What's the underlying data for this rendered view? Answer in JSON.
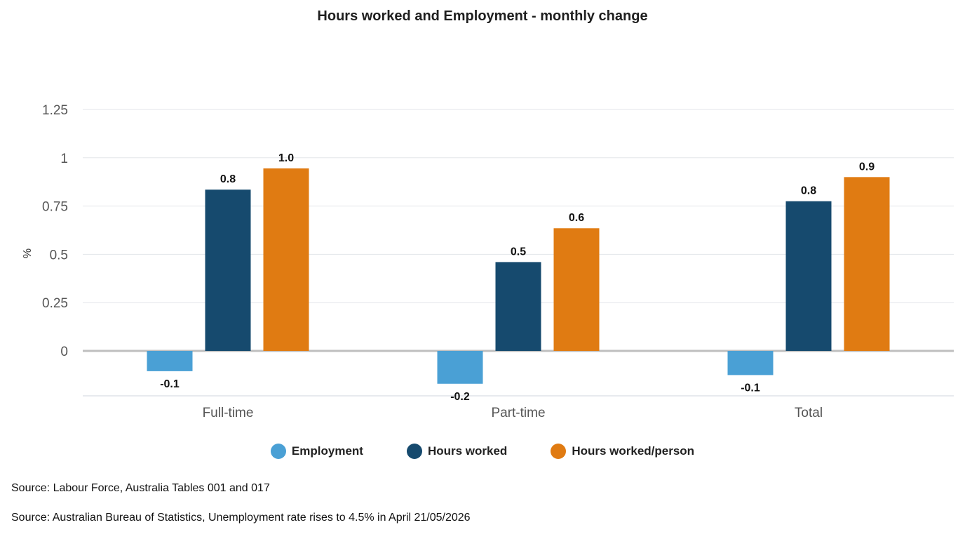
{
  "chart_data": {
    "type": "bar",
    "title": "Hours worked and Employment - monthly change",
    "ylabel": "%",
    "xlabel": "",
    "ylim": [
      -0.2,
      1.25
    ],
    "y_ticks": [
      0,
      0.25,
      0.5,
      0.75,
      1,
      1.25
    ],
    "y_tick_labels": [
      "0",
      "0.25",
      "0.5",
      "0.75",
      "1",
      "1.25"
    ],
    "grid": true,
    "legend_position": "bottom",
    "categories": [
      "Full-time",
      "Part-time",
      "Total"
    ],
    "series": [
      {
        "name": "Employment",
        "color": "#4aa0d5",
        "values": [
          -0.1,
          -0.2,
          -0.1
        ],
        "labels": [
          "-0.1",
          "-0.2",
          "-0.1"
        ],
        "bar_values": [
          -0.105,
          -0.17,
          -0.125
        ]
      },
      {
        "name": "Hours worked",
        "color": "#164a6e",
        "values": [
          0.8,
          0.5,
          0.8
        ],
        "labels": [
          "0.8",
          "0.5",
          "0.8"
        ],
        "bar_values": [
          0.835,
          0.46,
          0.775
        ]
      },
      {
        "name": "Hours worked/person",
        "color": "#e07b12",
        "values": [
          1.0,
          0.6,
          0.9
        ],
        "labels": [
          "1.0",
          "0.6",
          "0.9"
        ],
        "bar_values": [
          0.945,
          0.635,
          0.9
        ]
      }
    ]
  },
  "sources": [
    "Source: Labour Force, Australia Tables 001 and 017",
    "Source: Australian Bureau of Statistics, Unemployment rate rises to 4.5% in April 21/05/2026"
  ]
}
